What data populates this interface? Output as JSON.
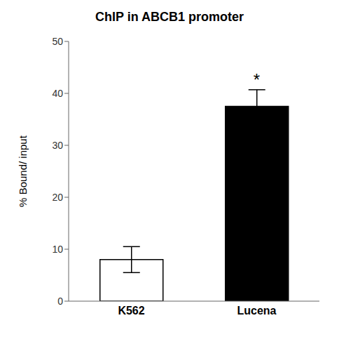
{
  "chart_data": {
    "type": "bar",
    "title": "ChIP in ABCB1 promoter",
    "categories": [
      "K562",
      "Lucena"
    ],
    "values": [
      8.0,
      37.5
    ],
    "errors": [
      2.5,
      3.2
    ],
    "colors": [
      "#ffffff",
      "#000000"
    ],
    "ylabel": "% Bound/ input",
    "ylim": [
      0,
      50
    ],
    "yticks": [
      0,
      10,
      20,
      30,
      40,
      50
    ],
    "annotations": [
      {
        "text": "*",
        "category": "Lucena",
        "y": 41.5
      }
    ]
  }
}
